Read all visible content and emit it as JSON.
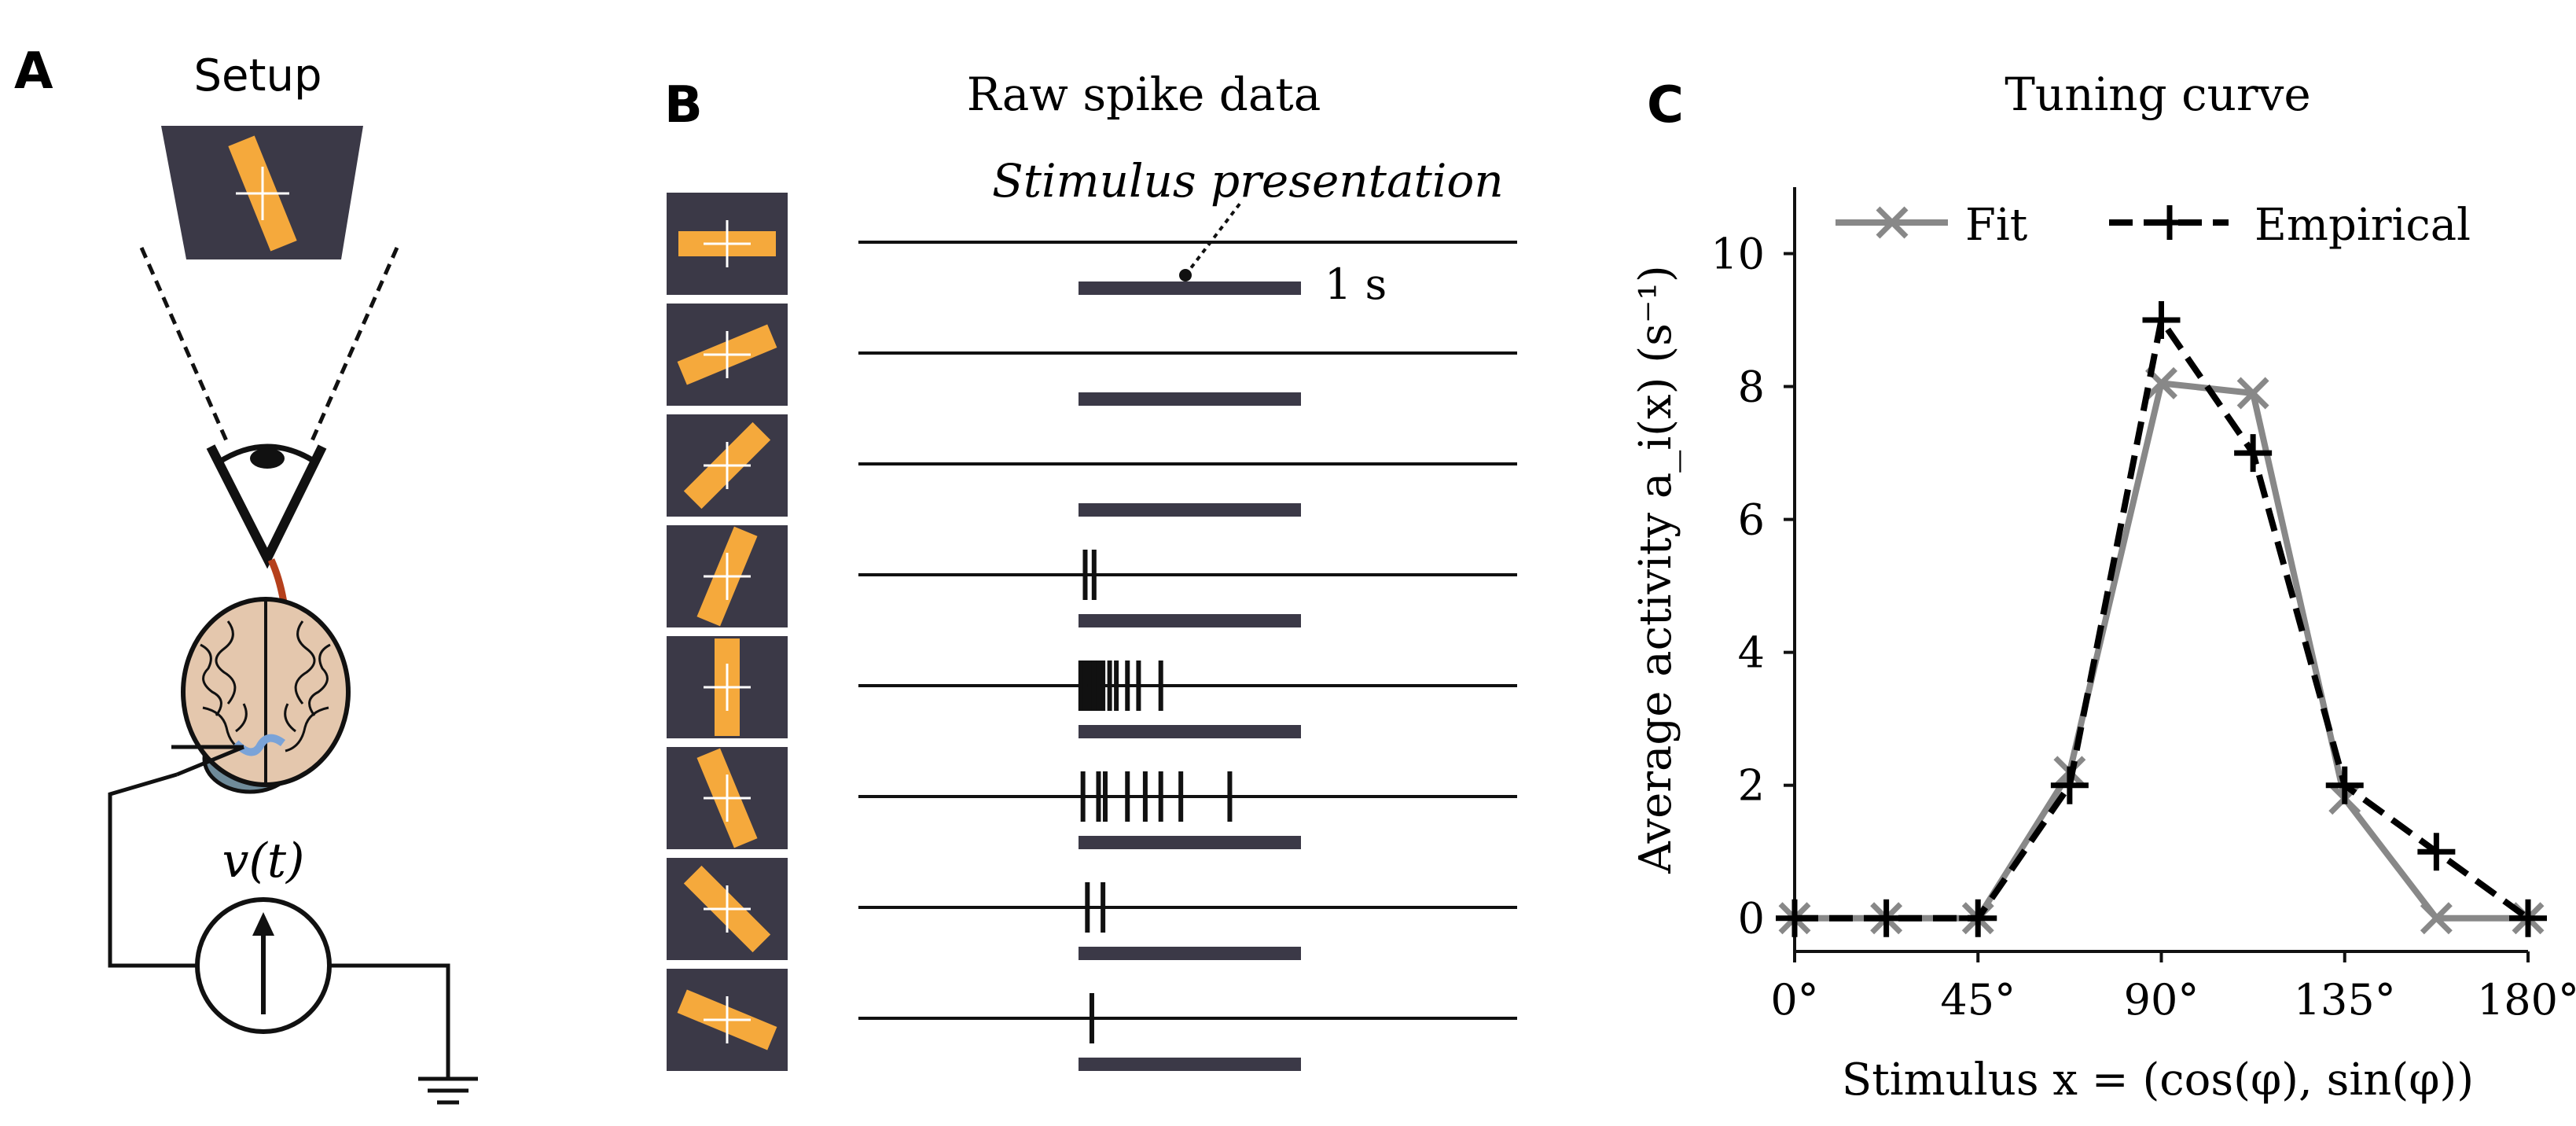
{
  "panel_a": {
    "letter": "A",
    "title": "Setup",
    "signal_label": "v(t)"
  },
  "panel_b": {
    "letter": "B",
    "title": "Raw spike data",
    "annotation": "Stimulus presentation",
    "scale_label": "1 s",
    "trials": [
      {
        "angle_deg": 0,
        "spikes": []
      },
      {
        "angle_deg": 22.5,
        "spikes": []
      },
      {
        "angle_deg": 45,
        "spikes": []
      },
      {
        "angle_deg": 67.5,
        "spikes": [
          0.03,
          0.07
        ]
      },
      {
        "angle_deg": 90,
        "spikes": [
          0.01,
          0.03,
          0.05,
          0.07,
          0.09,
          0.11,
          0.14,
          0.17,
          0.22,
          0.27,
          0.37
        ]
      },
      {
        "angle_deg": 112.5,
        "spikes": [
          0.02,
          0.09,
          0.12,
          0.22,
          0.3,
          0.37,
          0.46,
          0.68
        ]
      },
      {
        "angle_deg": 135,
        "spikes": [
          0.04,
          0.11
        ]
      },
      {
        "angle_deg": 157.5,
        "spikes": [
          0.06
        ]
      }
    ]
  },
  "panel_c": {
    "letter": "C",
    "title": "Tuning curve"
  },
  "chart_data": {
    "type": "line",
    "title": "Tuning curve",
    "xlabel": "Stimulus x = (cos(φ), sin(φ))",
    "ylabel": "Average activity a_i(x) (s⁻¹)",
    "xlim": [
      0,
      180
    ],
    "ylim": [
      -0.5,
      11
    ],
    "x_ticks": [
      0,
      45,
      90,
      135,
      180
    ],
    "x_tick_labels": [
      "0°",
      "45°",
      "90°",
      "135°",
      "180°"
    ],
    "y_ticks": [
      0,
      2,
      4,
      6,
      8,
      10
    ],
    "y_tick_labels": [
      "0",
      "2",
      "4",
      "6",
      "8",
      "10"
    ],
    "x": [
      0,
      22.5,
      45,
      67.5,
      90,
      112.5,
      135,
      157.5,
      180
    ],
    "series": [
      {
        "name": "Fit",
        "values": [
          0,
          0,
          0,
          2.2,
          8.05,
          7.9,
          1.8,
          0,
          0
        ],
        "color": "#888888",
        "marker": "x",
        "dash": "solid"
      },
      {
        "name": "Empirical",
        "values": [
          0,
          0,
          0,
          2,
          9,
          7,
          2,
          1,
          0
        ],
        "color": "#000000",
        "marker": "+",
        "dash": "dashed"
      }
    ],
    "legend": "top"
  }
}
